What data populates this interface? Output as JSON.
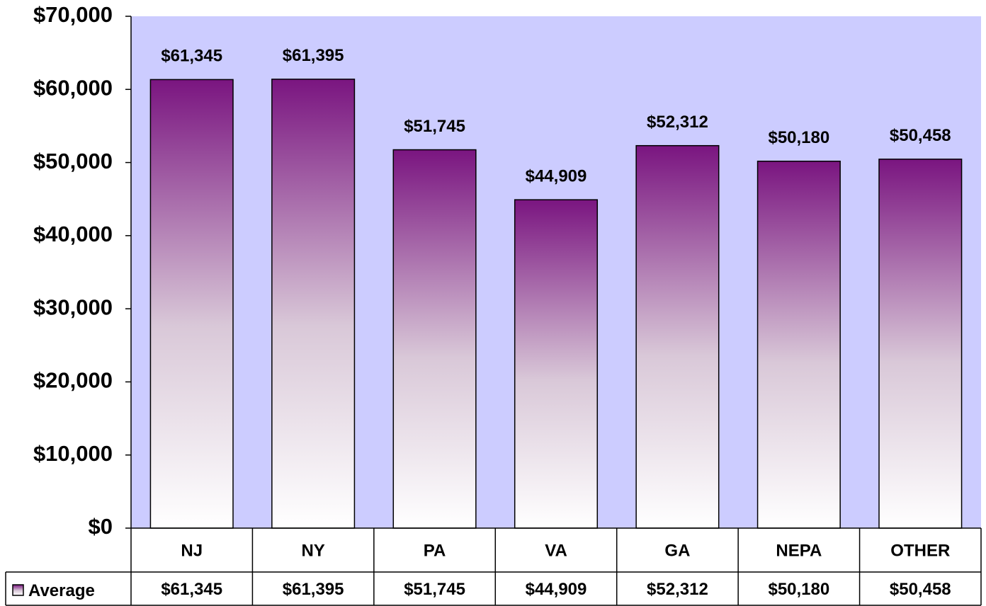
{
  "chart_data": {
    "type": "bar",
    "categories": [
      "NJ",
      "NY",
      "PA",
      "VA",
      "GA",
      "NEPA",
      "OTHER"
    ],
    "series": [
      {
        "name": "Average",
        "color": "#7a1580",
        "values": [
          61345,
          61395,
          51745,
          44909,
          52312,
          50180,
          50458
        ],
        "value_labels": [
          "$61,345",
          "$61,395",
          "$51,745",
          "$44,909",
          "$52,312",
          "$50,180",
          "$50,458"
        ]
      }
    ],
    "ylim": [
      0,
      70000
    ],
    "yticks": [
      {
        "value": 0,
        "label": "$0"
      },
      {
        "value": 10000,
        "label": "$10,000"
      },
      {
        "value": 20000,
        "label": "$20,000"
      },
      {
        "value": 30000,
        "label": "$30,000"
      },
      {
        "value": 40000,
        "label": "$40,000"
      },
      {
        "value": 50000,
        "label": "$50,000"
      },
      {
        "value": 60000,
        "label": "$60,000"
      },
      {
        "value": 70000,
        "label": "$70,000"
      }
    ],
    "plot_background": "#ccccff",
    "data_table": true
  }
}
